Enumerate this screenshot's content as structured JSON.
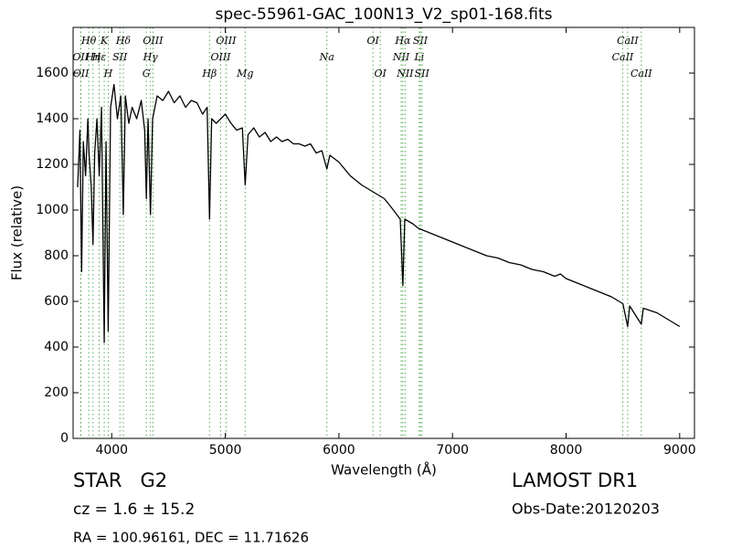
{
  "chart_data": {
    "type": "line",
    "title": "spec-55961-GAC_100N13_V2_sp01-168.fits",
    "x_label": "Wavelength (Å)",
    "y_label": "Flux (relative)",
    "xlim": [
      3660,
      9130
    ],
    "ylim": [
      0,
      1800
    ],
    "xticks": [
      4000,
      5000,
      6000,
      7000,
      8000,
      9000
    ],
    "yticks": [
      0,
      200,
      400,
      600,
      800,
      1000,
      1200,
      1400,
      1600
    ],
    "color": "#000000",
    "line_color": "#55aa55",
    "x": [
      3700,
      3720,
      3735,
      3750,
      3770,
      3790,
      3800,
      3820,
      3835,
      3850,
      3870,
      3890,
      3910,
      3934,
      3950,
      3969,
      3990,
      4020,
      4050,
      4080,
      4102,
      4120,
      4150,
      4180,
      4220,
      4260,
      4290,
      4305,
      4320,
      4341,
      4360,
      4400,
      4450,
      4500,
      4550,
      4600,
      4650,
      4700,
      4750,
      4800,
      4840,
      4861,
      4880,
      4920,
      4960,
      5000,
      5050,
      5100,
      5150,
      5175,
      5200,
      5250,
      5300,
      5350,
      5400,
      5450,
      5500,
      5550,
      5600,
      5650,
      5700,
      5750,
      5800,
      5850,
      5894,
      5920,
      6000,
      6100,
      6200,
      6300,
      6400,
      6480,
      6540,
      6563,
      6580,
      6650,
      6700,
      6800,
      6900,
      7000,
      7100,
      7200,
      7300,
      7400,
      7500,
      7600,
      7700,
      7800,
      7900,
      7950,
      8000,
      8100,
      8200,
      8300,
      8400,
      8500,
      8542,
      8560,
      8662,
      8680,
      8800,
      8900,
      9000
    ],
    "y": [
      1100,
      1350,
      730,
      1300,
      1150,
      1400,
      1250,
      1100,
      850,
      1250,
      1400,
      1150,
      1450,
      420,
      1300,
      470,
      1450,
      1550,
      1400,
      1500,
      980,
      1500,
      1380,
      1450,
      1400,
      1480,
      1350,
      1050,
      1400,
      980,
      1400,
      1500,
      1480,
      1520,
      1470,
      1500,
      1450,
      1480,
      1470,
      1420,
      1450,
      960,
      1400,
      1380,
      1400,
      1420,
      1380,
      1350,
      1360,
      1110,
      1330,
      1360,
      1320,
      1340,
      1300,
      1320,
      1300,
      1310,
      1290,
      1290,
      1280,
      1290,
      1250,
      1260,
      1180,
      1240,
      1210,
      1150,
      1110,
      1080,
      1050,
      1000,
      960,
      670,
      960,
      940,
      920,
      900,
      880,
      860,
      840,
      820,
      800,
      790,
      770,
      760,
      740,
      730,
      710,
      720,
      700,
      680,
      660,
      640,
      620,
      590,
      490,
      580,
      500,
      570,
      550,
      520,
      490
    ],
    "lines": [
      {
        "name": "OII",
        "wavelength": 3726
      },
      {
        "name": "OII",
        "wavelength": 3729
      },
      {
        "name": "Hθ",
        "wavelength": 3798
      },
      {
        "name": "Hη",
        "wavelength": 3835
      },
      {
        "name": "Hε",
        "wavelength": 3889
      },
      {
        "name": "K",
        "wavelength": 3934
      },
      {
        "name": "H",
        "wavelength": 3969
      },
      {
        "name": "SII",
        "wavelength": 4072
      },
      {
        "name": "Hδ",
        "wavelength": 4102
      },
      {
        "name": "G",
        "wavelength": 4305
      },
      {
        "name": "Hγ",
        "wavelength": 4341
      },
      {
        "name": "OIII",
        "wavelength": 4363
      },
      {
        "name": "Hβ",
        "wavelength": 4861
      },
      {
        "name": "OIII",
        "wavelength": 4959
      },
      {
        "name": "OIII",
        "wavelength": 5007
      },
      {
        "name": "Mg",
        "wavelength": 5175
      },
      {
        "name": "Na",
        "wavelength": 5894
      },
      {
        "name": "OI",
        "wavelength": 6300
      },
      {
        "name": "OI",
        "wavelength": 6364
      },
      {
        "name": "NII",
        "wavelength": 6548
      },
      {
        "name": "Hα",
        "wavelength": 6563
      },
      {
        "name": "NII",
        "wavelength": 6583
      },
      {
        "name": "Li",
        "wavelength": 6708
      },
      {
        "name": "SII",
        "wavelength": 6717
      },
      {
        "name": "SII",
        "wavelength": 6731
      },
      {
        "name": "CaII",
        "wavelength": 8498
      },
      {
        "name": "CaII",
        "wavelength": 8542
      },
      {
        "name": "CaII",
        "wavelength": 8662
      }
    ],
    "object_class": "STAR   G2",
    "redshift": "cz = 1.6 ± 15.2",
    "coordinates": "RA = 100.96161, DEC = 11.71626",
    "survey": "LAMOST DR1",
    "obs_date": "Obs-Date:20120203"
  }
}
